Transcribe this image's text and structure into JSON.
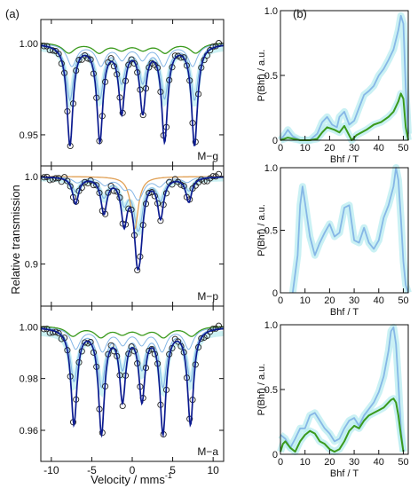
{
  "panel_labels": {
    "a": "(a)",
    "b": "(b)"
  },
  "colors": {
    "green": "#3a9a1c",
    "lightblue": "#86b7e6",
    "fillblue": "#b8ecf0",
    "navy": "#0b1a8f",
    "orange": "#e0a055",
    "marker": "#222222"
  },
  "chart_data": [
    {
      "id": "mossbauer-stack",
      "type": "line",
      "ylabel": "Relative transmission",
      "xlabel": "Velocity / mms",
      "xlabel_sup": "-1",
      "xlim": [
        -11.3,
        11.3
      ],
      "xticks": [
        -10,
        -5,
        0,
        5,
        10
      ],
      "panels": [
        {
          "name": "M−g",
          "ylim": [
            0.933,
            1.013
          ],
          "yticks": [
            {
              "v": 0.95,
              "label": "0.95"
            },
            {
              "v": 1.0,
              "label": "1.00"
            }
          ],
          "dips": [
            -7.7,
            -4.0,
            -1.3,
            1.3,
            4.0,
            7.7
          ],
          "depths": [
            0.055,
            0.052,
            0.036,
            0.036,
            0.052,
            0.055
          ]
        },
        {
          "name": "M−p",
          "ylim": [
            0.852,
            1.012
          ],
          "yticks": [
            {
              "v": 0.9,
              "label": "0.9"
            },
            {
              "v": 1.0,
              "label": "1.0"
            }
          ],
          "dips": [
            -7.0,
            -3.5,
            -1.0,
            0.6,
            1.0,
            3.5,
            7.0
          ],
          "depths": [
            0.03,
            0.04,
            0.05,
            0.07,
            0.05,
            0.045,
            0.028
          ]
        },
        {
          "name": "M−a",
          "ylim": [
            0.948,
            1.008
          ],
          "yticks": [
            {
              "v": 0.96,
              "label": "0.96"
            },
            {
              "v": 0.98,
              "label": "0.98"
            },
            {
              "v": 1.0,
              "label": "1.00"
            }
          ],
          "dips": [
            -7.2,
            -3.8,
            -1.2,
            1.2,
            3.8,
            7.2
          ],
          "depths": [
            0.037,
            0.04,
            0.027,
            0.027,
            0.04,
            0.037
          ]
        }
      ]
    },
    {
      "id": "bhf-distributions",
      "type": "line",
      "xlabel": "Bhf / T",
      "ylabel": "P(Bhf) / a.u.",
      "xlim": [
        0,
        52
      ],
      "xticks": [
        0,
        10,
        20,
        30,
        40,
        50
      ],
      "ylim": [
        0,
        1.0
      ],
      "yticks": [
        {
          "v": 0,
          "label": "0"
        },
        {
          "v": 0.5,
          "label": "0.5"
        },
        {
          "v": 1.0,
          "label": "1.0"
        }
      ],
      "panels": [
        {
          "ytick_labels": [
            "0",
            "0.5",
            "1.0"
          ],
          "series": [
            {
              "color": "lightblue",
              "x": [
                0,
                2,
                3,
                5,
                8,
                12,
                15,
                17,
                19,
                21,
                23,
                24,
                26,
                28,
                30,
                32,
                34,
                36,
                38,
                40,
                42,
                44,
                46,
                48,
                49,
                50,
                51,
                52
              ],
              "y": [
                0,
                0.05,
                0.08,
                0.03,
                0,
                0,
                0.05,
                0.14,
                0.18,
                0.12,
                0.1,
                0.18,
                0.22,
                0.12,
                0.15,
                0.25,
                0.35,
                0.38,
                0.42,
                0.5,
                0.55,
                0.62,
                0.7,
                0.85,
                0.96,
                0.9,
                0.4,
                0.05
              ]
            },
            {
              "color": "green",
              "x": [
                0,
                3,
                8,
                12,
                15,
                17,
                19,
                22,
                24,
                26,
                29,
                31,
                33,
                35,
                38,
                41,
                44,
                46,
                48,
                49,
                50,
                51,
                52
              ],
              "y": [
                0,
                0.02,
                0,
                0,
                0.01,
                0.06,
                0.1,
                0.08,
                0.06,
                0.11,
                0,
                0.04,
                0.06,
                0.08,
                0.12,
                0.14,
                0.18,
                0.22,
                0.3,
                0.36,
                0.32,
                0.1,
                0
              ]
            }
          ]
        },
        {
          "ytick_labels": [
            "0",
            "0.5",
            "1.0"
          ],
          "series": [
            {
              "color": "lightblue",
              "x": [
                5,
                7,
                8,
                9,
                10,
                12,
                14,
                16,
                18,
                20,
                22,
                24,
                26,
                28,
                30,
                32,
                34,
                36,
                38,
                40,
                42,
                44,
                46,
                47,
                48,
                49,
                50,
                51,
                52
              ],
              "y": [
                0,
                0.3,
                0.7,
                0.85,
                0.72,
                0.45,
                0.3,
                0.4,
                0.48,
                0.55,
                0.45,
                0.48,
                0.68,
                0.7,
                0.42,
                0.4,
                0.52,
                0.4,
                0.35,
                0.42,
                0.6,
                0.7,
                0.85,
                1.0,
                0.9,
                0.6,
                0.25,
                0.06,
                0
              ]
            }
          ]
        },
        {
          "ytick_labels": [
            "0",
            "0.5",
            "1.0"
          ],
          "series": [
            {
              "color": "lightblue",
              "x": [
                0,
                2,
                4,
                6,
                8,
                10,
                12,
                14,
                16,
                18,
                20,
                22,
                24,
                26,
                28,
                30,
                32,
                34,
                36,
                38,
                40,
                42,
                44,
                45,
                46,
                47,
                48,
                49,
                50
              ],
              "y": [
                0.15,
                0.12,
                0.05,
                0.12,
                0.2,
                0.2,
                0.3,
                0.32,
                0.26,
                0.2,
                0.16,
                0.1,
                0.12,
                0.2,
                0.26,
                0.28,
                0.22,
                0.3,
                0.35,
                0.4,
                0.48,
                0.6,
                0.8,
                0.95,
                0.98,
                0.85,
                0.55,
                0.2,
                0.02
              ]
            },
            {
              "color": "green",
              "x": [
                0,
                1,
                2,
                4,
                6,
                8,
                10,
                12,
                14,
                16,
                18,
                20,
                22,
                24,
                26,
                28,
                30,
                32,
                34,
                36,
                38,
                40,
                42,
                44,
                45,
                46,
                47,
                48,
                49,
                50
              ],
              "y": [
                0.02,
                0.08,
                0.1,
                0.05,
                0.02,
                0.1,
                0.15,
                0.18,
                0.16,
                0.1,
                0.08,
                0.04,
                0.02,
                0.04,
                0.1,
                0.18,
                0.22,
                0.2,
                0.26,
                0.3,
                0.32,
                0.34,
                0.36,
                0.4,
                0.42,
                0.43,
                0.4,
                0.3,
                0.15,
                0.02
              ]
            }
          ]
        }
      ]
    }
  ]
}
